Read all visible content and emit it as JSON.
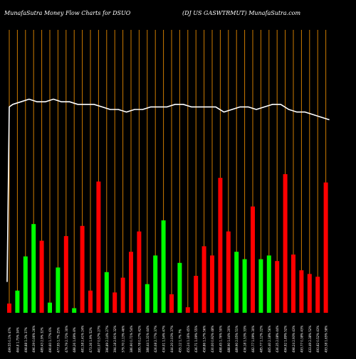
{
  "header": {
    "left": "MunafaSutra  Money Flow  Charts for DSUO",
    "right": "(DJ US GASWTRMUT) MunafaSutra.com"
  },
  "colors": {
    "background": "#000000",
    "gridline": "#cc7a00",
    "up": "#00ff00",
    "down": "#ff0000",
    "line": "#ffffff",
    "label": "#ffffff"
  },
  "chart_data": {
    "type": "bar",
    "title": "MunafaSutra  Money Flow  Charts for DSUO",
    "subtitle": "(DJ US GASWTRMUT) MunafaSutra.com",
    "grid": true,
    "categories": [
      "499.55 0.1% 47%",
      "464.8 1.75% 34%",
      "498.88 1.3% 37%",
      "496.39 0.06% 26%",
      "489.43 2.9% 32%",
      "490.60 1.77% 6%",
      "477.95 1.7% 25%",
      "479.79 2.72% 30%",
      "488.26 1.69% 8%",
      "481.58 2.41% 24%",
      "473.36 1.9% 52%",
      "461.07 0.57% 27%",
      "396.89 2.14% 27%",
      "394.18 2.91% 32%",
      "379.70 2.13% 46%",
      "386.90 0.71% 54%",
      "395.78 0.27% 42%",
      "388.44 1.31% 44%",
      "426.08 2.77% 37%",
      "434.01 1.54% 47%",
      "444.20 2.03% 37%",
      "455.12 1.7% 7%",
      "455.24 1.16% 45%",
      "436.71 1.09% 55%",
      "458.86 1.57% 56%",
      "430.00 0.92% 48%",
      "498.45 1.76% 50%",
      "488.90 1.04% 20%",
      "489.90 2.05% 51%",
      "436.18 1.53% 33%",
      "482.77 1.09% 30%",
      "485.77 1.12% 22%",
      "465.40 2.18% 56%",
      "436.35 2.08% 44%",
      "494.92 1.89% 52%",
      "498.24 2.93% 43%",
      "493.77 0.38% 43%",
      "433.49 2.38% 52%",
      "493.82 0.52% 43%",
      "493.38 1.65% 58%"
    ],
    "bar_colors": [
      "red",
      "green",
      "green",
      "green",
      "red",
      "green",
      "green",
      "red",
      "green",
      "red",
      "red",
      "red",
      "green",
      "red",
      "red",
      "red",
      "red",
      "green",
      "green",
      "green",
      "red",
      "green",
      "red",
      "red",
      "red",
      "red",
      "red",
      "red",
      "green",
      "green",
      "red",
      "green",
      "green",
      "red",
      "red",
      "red",
      "red",
      "red",
      "red",
      "red"
    ],
    "values": [
      5.0,
      12.0,
      30.5,
      48.0,
      39.0,
      5.5,
      24.5,
      41.5,
      2.5,
      47.0,
      12.0,
      71.0,
      22.0,
      11.0,
      19.0,
      33.0,
      44.0,
      15.5,
      31.0,
      50.0,
      10.0,
      27.0,
      3.0,
      20.0,
      36.0,
      31.0,
      73.0,
      44.0,
      33.0,
      29.0,
      57.5,
      29.0,
      31.0,
      28.0,
      75.0,
      31.5,
      23.0,
      21.0,
      19.5,
      70.5
    ],
    "price_line": [
      0.81,
      0.82,
      0.83,
      0.82,
      0.82,
      0.83,
      0.82,
      0.82,
      0.81,
      0.81,
      0.81,
      0.8,
      0.79,
      0.79,
      0.78,
      0.79,
      0.79,
      0.8,
      0.8,
      0.8,
      0.81,
      0.81,
      0.8,
      0.8,
      0.8,
      0.8,
      0.78,
      0.79,
      0.8,
      0.8,
      0.79,
      0.8,
      0.81,
      0.81,
      0.79,
      0.78,
      0.78,
      0.77,
      0.76,
      0.75
    ],
    "price_line_start": 0.12,
    "price_line_first_peak": 0.8,
    "ylim": [
      0,
      100
    ]
  }
}
